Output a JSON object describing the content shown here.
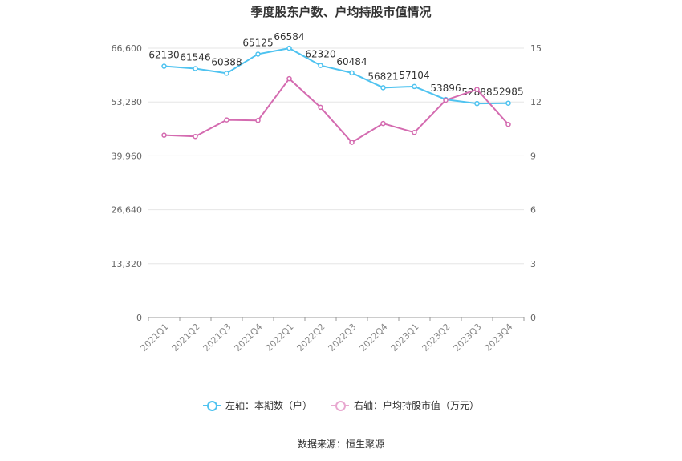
{
  "chart_data": {
    "type": "line",
    "title": "季度股东户数、户均持股市值情况",
    "categories": [
      "2021Q1",
      "2021Q2",
      "2021Q3",
      "2021Q4",
      "2022Q1",
      "2022Q2",
      "2022Q3",
      "2022Q4",
      "2023Q1",
      "2023Q2",
      "2023Q3",
      "2023Q4"
    ],
    "left_axis": {
      "ylim": [
        0,
        66600
      ],
      "ticks": [
        "0",
        "13,320",
        "26,640",
        "39,960",
        "53,280",
        "66,600"
      ],
      "tick_values": [
        0,
        13320,
        26640,
        39960,
        53280,
        66600
      ]
    },
    "right_axis": {
      "ylim": [
        0,
        15
      ],
      "ticks": [
        "0",
        "3",
        "6",
        "9",
        "12",
        "15"
      ],
      "tick_values": [
        0,
        3,
        6,
        9,
        12,
        15
      ]
    },
    "series": [
      {
        "name": "左轴：本期数（户）",
        "axis": "left",
        "color": "#4fc3f0",
        "values": [
          62130,
          61546,
          60388,
          65125,
          66584,
          62320,
          60484,
          56821,
          57104,
          53896,
          52888,
          52985
        ],
        "labels": [
          "62130",
          "61546",
          "60388",
          "65125",
          "66584",
          "62320",
          "60484",
          "56821",
          "57104",
          "53896",
          "52888",
          "52985"
        ]
      },
      {
        "name": "右轴：户均持股市值（万元）",
        "axis": "right",
        "color": "#d46bb0",
        "values": [
          10.15,
          10.08,
          11.0,
          10.97,
          13.3,
          11.7,
          9.75,
          10.8,
          10.3,
          12.1,
          12.7,
          10.75
        ]
      }
    ],
    "grid": true,
    "legend_position": "bottom"
  },
  "source": "数据来源：恒生聚源"
}
